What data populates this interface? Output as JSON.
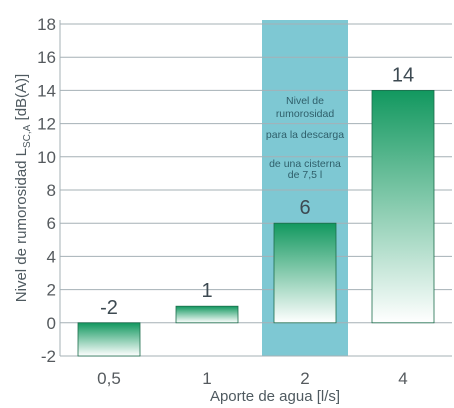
{
  "chart_data": {
    "type": "bar",
    "categories": [
      "0,5",
      "1",
      "2",
      "4"
    ],
    "values": [
      -2,
      1,
      6,
      14
    ],
    "data_labels": [
      "-2",
      "1",
      "6",
      "14"
    ],
    "xlabel": "Aporte de agua [l/s]",
    "ylabel": {
      "main": "Nivel de rumorosidad  L",
      "subscript": "SC,A",
      "unit": " [dB(A)]"
    },
    "ylim": [
      -2,
      18
    ],
    "yticks": [
      "-2",
      "0",
      "2",
      "4",
      "6",
      "8",
      "10",
      "12",
      "14",
      "16",
      "18"
    ],
    "grid": true,
    "highlight": {
      "category": "2",
      "lines": [
        "Nivel de",
        "rumorosidad",
        "para la descarga",
        "de una cisterna",
        "de 7,5 l"
      ]
    },
    "colors": {
      "bar_top": "#12985f",
      "bar_bottom": "#ffffff",
      "highlight_bg": "#7ec8d3",
      "grid": "#a5b0b6",
      "bar_border": "#1c6d4c"
    }
  }
}
